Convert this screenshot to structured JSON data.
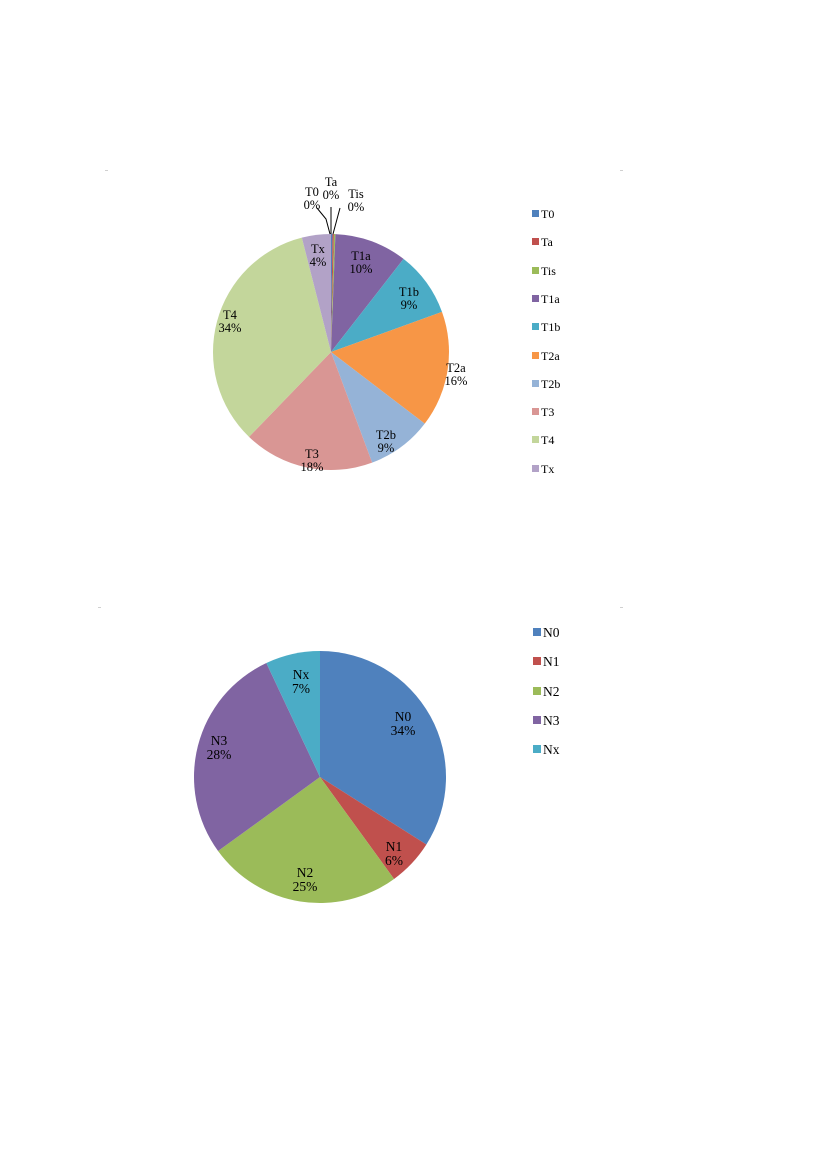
{
  "chart_data": [
    {
      "type": "pie",
      "legend_position": "right",
      "categories": [
        "T0",
        "Ta",
        "Tis",
        "T1a",
        "T1b",
        "T2a",
        "T2b",
        "T3",
        "T4",
        "Tx"
      ],
      "values": [
        0.2,
        0.2,
        0.2,
        10,
        9,
        16,
        9,
        18,
        34,
        4
      ],
      "labels": [
        "0%",
        "0%",
        "0%",
        "10%",
        "9%",
        "16%",
        "9%",
        "18%",
        "34%",
        "4%"
      ],
      "colors": [
        "#4F81BD",
        "#C0504D",
        "#9BBB59",
        "#8064A2",
        "#4BACC6",
        "#F79646",
        "#95B3D7",
        "#D99694",
        "#C3D69B",
        "#B2A2C7"
      ]
    },
    {
      "type": "pie",
      "legend_position": "right",
      "categories": [
        "N0",
        "N1",
        "N2",
        "N3",
        "Nx"
      ],
      "values": [
        34,
        6,
        25,
        28,
        7
      ],
      "labels": [
        "34%",
        "6%",
        "25%",
        "28%",
        "7%"
      ],
      "colors": [
        "#4F81BD",
        "#C0504D",
        "#9BBB59",
        "#8064A2",
        "#4BACC6"
      ]
    }
  ]
}
